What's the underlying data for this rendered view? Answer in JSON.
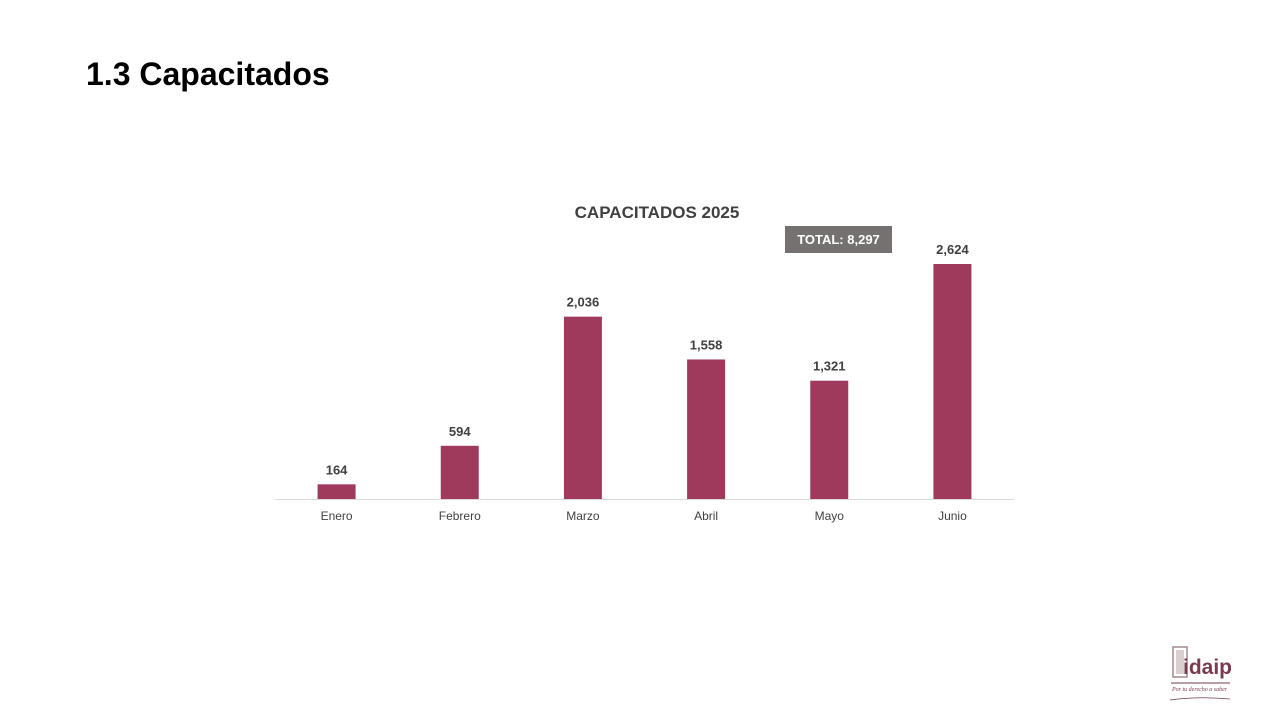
{
  "slide": {
    "title": "1.3 Capacitados"
  },
  "total_label": "TOTAL: 8,297",
  "logo": {
    "text": "idaip",
    "tagline": "Por tu derecho a saber"
  },
  "colors": {
    "bar": "#A03A5C",
    "badge": "#767171",
    "axis": "#D9D9D9",
    "label": "#404040"
  },
  "chart_data": {
    "type": "bar",
    "title": "CAPACITADOS 2025",
    "categories": [
      "Enero",
      "Febrero",
      "Marzo",
      "Abril",
      "Mayo",
      "Junio"
    ],
    "values": [
      164,
      594,
      2036,
      1558,
      1321,
      2624
    ],
    "value_labels": [
      "164",
      "594",
      "2,036",
      "1,558",
      "1,321",
      "2,624"
    ],
    "xlabel": "",
    "ylabel": "",
    "grid": false,
    "legend": "none"
  }
}
